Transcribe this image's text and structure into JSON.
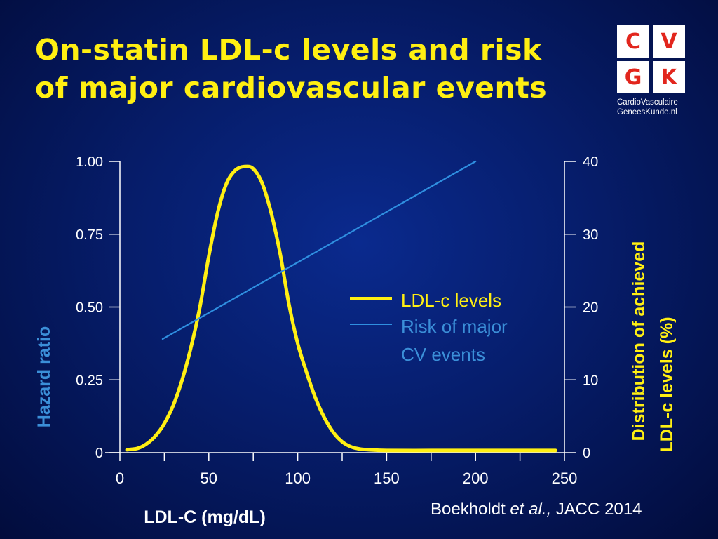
{
  "title": {
    "line1": "On-statin LDL-c levels and risk",
    "line2": "of major cardiovascular events"
  },
  "logo": {
    "letters": [
      "C",
      "V",
      "G",
      "K"
    ],
    "line1": "CardioVasculaire",
    "line2": "GeneesKunde.nl"
  },
  "legend": {
    "ldl_label": "LDL-c levels",
    "risk_label_1": "Risk of major",
    "risk_label_2": "CV events"
  },
  "citation": {
    "author": "Boekholdt",
    "etal": "et al.,",
    "journal": "JACC 2014"
  },
  "colors": {
    "ldl": "#ffef12",
    "risk": "#2f8fe0",
    "axis": "#ffffff",
    "left_axis_label": "#3b8fd8",
    "right_axis_label": "#ffef12"
  },
  "chart_data": {
    "type": "line",
    "xlabel": "LDL-C (mg/dL)",
    "ylabel": "Hazard ratio",
    "y2label_1": "Distribution of achieved",
    "y2label_2": "LDL-c levels (%)",
    "xlim": [
      0,
      250
    ],
    "ylim": [
      0,
      1.0
    ],
    "y2lim": [
      0,
      40
    ],
    "x_ticks": [
      0,
      50,
      100,
      150,
      200,
      250
    ],
    "x_tick_labels": [
      "0",
      "50",
      "100",
      "150",
      "200",
      "250"
    ],
    "y_ticks": [
      0,
      0.25,
      0.5,
      0.75,
      1.0
    ],
    "y_tick_labels": [
      "0",
      "0.25",
      "0.50",
      "0.75",
      "1.00"
    ],
    "y2_ticks": [
      0,
      10,
      20,
      30,
      40
    ],
    "y2_tick_labels": [
      "0",
      "10",
      "20",
      "30",
      "40"
    ],
    "grid": false,
    "legend_position": "center-right",
    "series": [
      {
        "name": "LDL-c levels",
        "axis": "right",
        "x": [
          4,
          10,
          15,
          20,
          25,
          30,
          35,
          40,
          45,
          50,
          55,
          60,
          65,
          70,
          75,
          80,
          85,
          90,
          95,
          100,
          105,
          110,
          115,
          120,
          125,
          130,
          135,
          140,
          150,
          175,
          200,
          225,
          240,
          245
        ],
        "values": [
          0.4,
          0.6,
          1.2,
          2.3,
          4.0,
          6.5,
          10.0,
          14.5,
          20.0,
          27.0,
          33.0,
          37.0,
          38.8,
          39.3,
          39.0,
          37.0,
          33.0,
          27.5,
          20.5,
          15.0,
          11.0,
          7.5,
          4.8,
          2.8,
          1.5,
          0.8,
          0.5,
          0.4,
          0.3,
          0.3,
          0.3,
          0.3,
          0.3,
          0.3
        ]
      },
      {
        "name": "Risk of major CV events",
        "axis": "left",
        "x": [
          24,
          200
        ],
        "values": [
          0.39,
          1.0
        ]
      }
    ]
  }
}
